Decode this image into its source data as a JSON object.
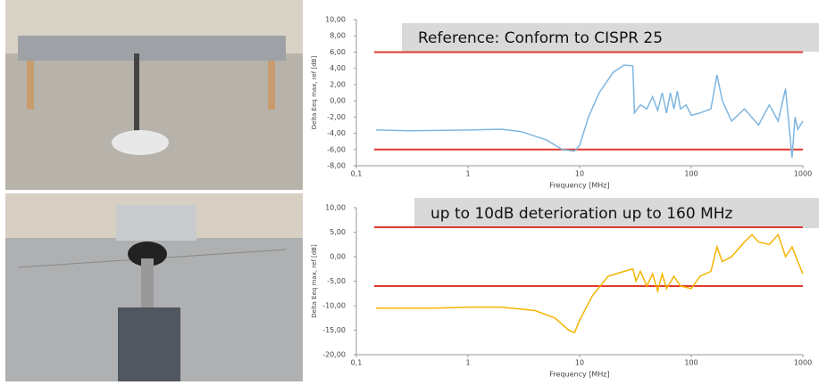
{
  "chart_data": [
    {
      "type": "line",
      "title": "Reference: Conform to CISPR 25",
      "x_label": "Frequency [MHz]",
      "y_label": "Delta Eeq max, ref [dB]",
      "log_x": true,
      "xlim": [
        0.1,
        1000
      ],
      "xticks": [
        {
          "value": 0.1,
          "label": "0,1"
        },
        1,
        10,
        100,
        1000
      ],
      "ylim": [
        -8,
        10
      ],
      "yticks": [
        {
          "value": -8,
          "label": "-8,00"
        },
        {
          "value": -6,
          "label": "-6,00"
        },
        {
          "value": -4,
          "label": "-4,00"
        },
        {
          "value": -2,
          "label": "-2,00"
        },
        {
          "value": 0,
          "label": "0,00"
        },
        {
          "value": 2,
          "label": "2,00"
        },
        {
          "value": 4,
          "label": "4,00"
        },
        {
          "value": 6,
          "label": "6,00"
        },
        {
          "value": 8,
          "label": "8,00"
        },
        {
          "value": 10,
          "label": "10,00"
        }
      ],
      "reference_lines": [
        6,
        -6
      ],
      "reference_color": "#e03a2e",
      "x": [
        0.15,
        0.3,
        1,
        2,
        3,
        5,
        7,
        9,
        10,
        12,
        15,
        20,
        25,
        30,
        31,
        35,
        40,
        45,
        50,
        55,
        60,
        65,
        70,
        75,
        80,
        90,
        100,
        120,
        150,
        170,
        190,
        230,
        300,
        400,
        500,
        600,
        700,
        800,
        850,
        900,
        1000
      ],
      "series": [
        {
          "color": "#7fb6e0",
          "values": [
            -3.6,
            -3.7,
            -3.6,
            -3.5,
            -3.8,
            -4.8,
            -6,
            -6.2,
            -5.5,
            -2,
            1,
            3.5,
            4.4,
            4.3,
            -1.5,
            -0.5,
            -1,
            0.5,
            -1.2,
            1,
            -1.5,
            1,
            -1,
            1.2,
            -1,
            -0.5,
            -1.8,
            -1.5,
            -1,
            3.2,
            0,
            -2.5,
            -1,
            -3,
            -0.5,
            -2.5,
            1.5,
            -7,
            -2,
            -3.5,
            -2.5
          ]
        }
      ]
    },
    {
      "type": "line",
      "title": "up to 10dB deterioration up to 160 MHz",
      "x_label": "Frequency [MHz]",
      "y_label": "Delta Eeq max, ref [dB]",
      "log_x": true,
      "xlim": [
        0.1,
        1000
      ],
      "xticks": [
        {
          "value": 0.1,
          "label": "0,1"
        },
        1,
        10,
        100,
        1000
      ],
      "ylim": [
        -20,
        10
      ],
      "yticks": [
        {
          "value": -20,
          "label": "-20,00"
        },
        {
          "value": -15,
          "label": "-15,00"
        },
        {
          "value": -10,
          "label": "-10,00"
        },
        {
          "value": -5,
          "label": "-5,00"
        },
        {
          "value": 0,
          "label": "0,00"
        },
        {
          "value": 5,
          "label": "5,00"
        },
        {
          "value": 10,
          "label": "10,00"
        }
      ],
      "reference_lines": [
        6,
        -6
      ],
      "reference_color": "#e03a2e",
      "x": [
        0.15,
        0.5,
        1,
        2,
        4,
        6,
        8,
        9,
        10,
        13,
        18,
        25,
        30,
        32,
        35,
        40,
        45,
        50,
        55,
        60,
        70,
        80,
        100,
        120,
        150,
        170,
        190,
        230,
        300,
        350,
        400,
        500,
        600,
        700,
        800,
        900,
        1000
      ],
      "series": [
        {
          "color": "#f5b400",
          "values": [
            -10.5,
            -10.5,
            -10.3,
            -10.3,
            -11,
            -12.5,
            -15,
            -15.5,
            -13,
            -8,
            -4,
            -3,
            -2.5,
            -5,
            -3,
            -6,
            -3.5,
            -7,
            -3.5,
            -6.5,
            -4,
            -6,
            -6.5,
            -4,
            -3,
            2,
            -1,
            0,
            3,
            4.5,
            3,
            2.5,
            4.5,
            0,
            2,
            -1,
            -3.5
          ]
        }
      ]
    }
  ]
}
